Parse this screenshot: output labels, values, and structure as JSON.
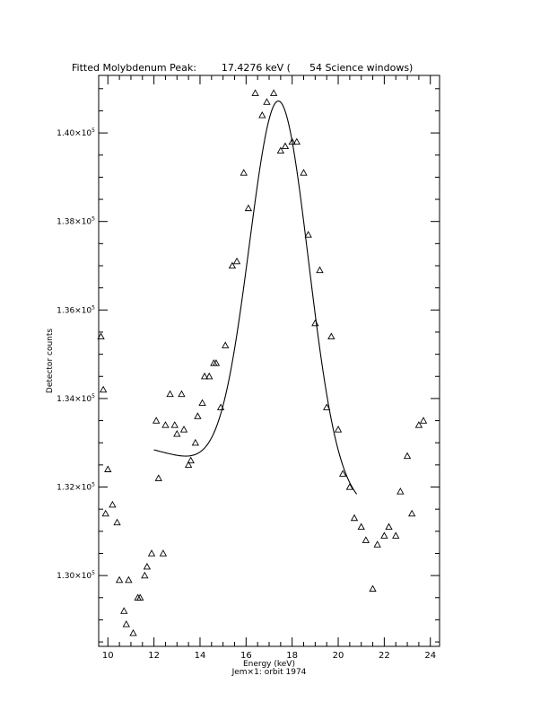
{
  "chart_data": {
    "type": "scatter",
    "title": "Fitted Molybdenum Peak:        17.4276 keV (      54 Science windows)",
    "xlabel": "Energy (keV)",
    "xlabel2": "Jem×1: orbit 1974",
    "ylabel": "Detector counts",
    "xlim": [
      9.6,
      24.4
    ],
    "ylim": [
      128400,
      141300
    ],
    "x_ticks": [
      10,
      12,
      14,
      16,
      18,
      20,
      22,
      24
    ],
    "y_ticks": [
      {
        "value": 130000,
        "mantissa": "1.30×10",
        "exp": "5"
      },
      {
        "value": 132000,
        "mantissa": "1.32×10",
        "exp": "5"
      },
      {
        "value": 134000,
        "mantissa": "1.34×10",
        "exp": "5"
      },
      {
        "value": 136000,
        "mantissa": "1.36×10",
        "exp": "5"
      },
      {
        "value": 138000,
        "mantissa": "1.38×10",
        "exp": "5"
      },
      {
        "value": 140000,
        "mantissa": "1.40×10",
        "exp": "5"
      }
    ],
    "grid": false,
    "series": [
      {
        "marker": "triangle",
        "points": [
          [
            9.7,
            135400
          ],
          [
            9.8,
            134200
          ],
          [
            9.9,
            131400
          ],
          [
            10.0,
            132400
          ],
          [
            10.2,
            131600
          ],
          [
            10.4,
            131200
          ],
          [
            10.5,
            129900
          ],
          [
            10.7,
            129200
          ],
          [
            10.8,
            128900
          ],
          [
            10.9,
            129900
          ],
          [
            11.1,
            128700
          ],
          [
            11.3,
            129500
          ],
          [
            11.4,
            129500
          ],
          [
            11.6,
            130000
          ],
          [
            11.7,
            130200
          ],
          [
            11.9,
            130500
          ],
          [
            12.1,
            133500
          ],
          [
            12.2,
            132200
          ],
          [
            12.4,
            130500
          ],
          [
            12.5,
            133400
          ],
          [
            12.7,
            134100
          ],
          [
            12.9,
            133400
          ],
          [
            13.0,
            133200
          ],
          [
            13.2,
            134100
          ],
          [
            13.3,
            133300
          ],
          [
            13.5,
            132500
          ],
          [
            13.6,
            132600
          ],
          [
            13.8,
            133000
          ],
          [
            13.9,
            133600
          ],
          [
            14.1,
            133900
          ],
          [
            14.2,
            134500
          ],
          [
            14.4,
            134500
          ],
          [
            14.6,
            134800
          ],
          [
            14.7,
            134800
          ],
          [
            14.9,
            133800
          ],
          [
            15.1,
            135200
          ],
          [
            15.4,
            137000
          ],
          [
            15.6,
            137100
          ],
          [
            15.9,
            139100
          ],
          [
            16.1,
            138300
          ],
          [
            16.4,
            140900
          ],
          [
            16.7,
            140400
          ],
          [
            16.9,
            140700
          ],
          [
            17.2,
            140900
          ],
          [
            17.5,
            139600
          ],
          [
            17.7,
            139700
          ],
          [
            18.0,
            139800
          ],
          [
            18.2,
            139800
          ],
          [
            18.5,
            139100
          ],
          [
            18.7,
            137700
          ],
          [
            19.0,
            135700
          ],
          [
            19.2,
            136900
          ],
          [
            19.5,
            133800
          ],
          [
            19.7,
            135400
          ],
          [
            20.0,
            133300
          ],
          [
            20.2,
            132300
          ],
          [
            20.5,
            132000
          ],
          [
            20.7,
            131300
          ],
          [
            21.0,
            131100
          ],
          [
            21.2,
            130800
          ],
          [
            21.5,
            129700
          ],
          [
            21.7,
            130700
          ],
          [
            22.0,
            130900
          ],
          [
            22.2,
            131100
          ],
          [
            22.5,
            130900
          ],
          [
            22.7,
            131900
          ],
          [
            23.0,
            132700
          ],
          [
            23.2,
            131400
          ],
          [
            23.5,
            133400
          ],
          [
            23.7,
            133500
          ]
        ]
      },
      {
        "line": "fit",
        "center": 17.4276,
        "peak": 140720,
        "sigma": 1.28,
        "base_left": 132840,
        "base_right": 131570,
        "base_x0": 12.0,
        "base_x1": 20.8,
        "x_range": [
          12.0,
          20.8
        ]
      }
    ]
  }
}
